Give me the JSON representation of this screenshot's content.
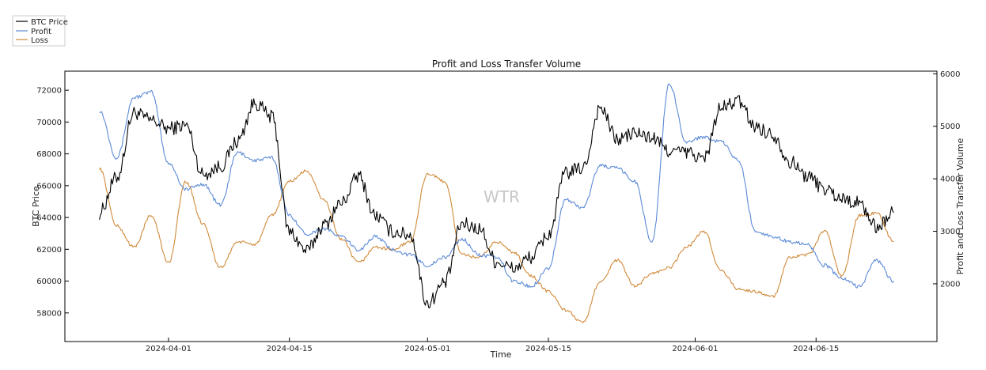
{
  "chart_data": {
    "type": "line",
    "title": "Profit and Loss Transfer Volume",
    "xlabel": "Time",
    "ylabel": "BTC Price",
    "y2label": "Profit and Loss Transfer Volume",
    "watermark": "WTR",
    "legend_position": "top-left (outside plot)",
    "xlim": [
      "2024-03-20",
      "2024-06-29"
    ],
    "ylim": [
      56200,
      73200
    ],
    "y2lim": [
      900,
      6050
    ],
    "x_ticks": [
      "2024-04-01",
      "2024-04-15",
      "2024-05-01",
      "2024-05-15",
      "2024-06-01",
      "2024-06-15"
    ],
    "y_ticks": [
      "58000",
      "60000",
      "62000",
      "64000",
      "66000",
      "68000",
      "70000",
      "72000"
    ],
    "y2_ticks": [
      "2000",
      "3000",
      "4000",
      "5000",
      "6000"
    ],
    "series": [
      {
        "name": "BTC Price",
        "axis": "left",
        "color": "#000000",
        "x": [
          "2024-03-24",
          "2024-03-26",
          "2024-03-28",
          "2024-03-30",
          "2024-04-01",
          "2024-04-03",
          "2024-04-05",
          "2024-04-07",
          "2024-04-09",
          "2024-04-11",
          "2024-04-13",
          "2024-04-15",
          "2024-04-17",
          "2024-04-19",
          "2024-04-21",
          "2024-04-23",
          "2024-04-25",
          "2024-04-27",
          "2024-04-29",
          "2024-05-01",
          "2024-05-03",
          "2024-05-05",
          "2024-05-07",
          "2024-05-09",
          "2024-05-11",
          "2024-05-13",
          "2024-05-15",
          "2024-05-17",
          "2024-05-19",
          "2024-05-21",
          "2024-05-23",
          "2024-05-25",
          "2024-05-27",
          "2024-05-29",
          "2024-05-31",
          "2024-06-02",
          "2024-06-04",
          "2024-06-06",
          "2024-06-08",
          "2024-06-10",
          "2024-06-12",
          "2024-06-14",
          "2024-06-16",
          "2024-06-18",
          "2024-06-20",
          "2024-06-22",
          "2024-06-24"
        ],
        "values": [
          64300,
          66500,
          70600,
          70100,
          69600,
          69800,
          66700,
          67200,
          68800,
          71200,
          70300,
          63100,
          61900,
          63500,
          64900,
          66600,
          64100,
          63100,
          62900,
          58600,
          59900,
          63600,
          63300,
          61200,
          60800,
          61500,
          62900,
          66800,
          67100,
          70900,
          68900,
          69300,
          69000,
          68200,
          68100,
          67700,
          70900,
          71300,
          69700,
          69200,
          67500,
          66600,
          65800,
          65200,
          64900,
          63400,
          64300
        ]
      },
      {
        "name": "Profit",
        "axis": "right",
        "color": "#5b8ad6",
        "x": [
          "2024-03-24",
          "2024-03-26",
          "2024-03-28",
          "2024-03-30",
          "2024-04-01",
          "2024-04-03",
          "2024-04-05",
          "2024-04-07",
          "2024-04-09",
          "2024-04-11",
          "2024-04-13",
          "2024-04-15",
          "2024-04-17",
          "2024-04-19",
          "2024-04-21",
          "2024-04-23",
          "2024-04-25",
          "2024-04-27",
          "2024-04-29",
          "2024-05-01",
          "2024-05-03",
          "2024-05-05",
          "2024-05-07",
          "2024-05-09",
          "2024-05-11",
          "2024-05-13",
          "2024-05-15",
          "2024-05-17",
          "2024-05-19",
          "2024-05-21",
          "2024-05-23",
          "2024-05-25",
          "2024-05-27",
          "2024-05-29",
          "2024-05-31",
          "2024-06-02",
          "2024-06-04",
          "2024-06-06",
          "2024-06-08",
          "2024-06-10",
          "2024-06-12",
          "2024-06-14",
          "2024-06-16",
          "2024-06-18",
          "2024-06-20",
          "2024-06-22",
          "2024-06-24"
        ],
        "values": [
          5300,
          4400,
          5550,
          5650,
          4300,
          3800,
          3900,
          3500,
          4500,
          4350,
          4400,
          3300,
          2950,
          3050,
          2900,
          2650,
          2900,
          2650,
          2550,
          2350,
          2500,
          2850,
          2550,
          2500,
          2050,
          1950,
          2300,
          3600,
          3450,
          4250,
          4200,
          3950,
          2800,
          5800,
          4700,
          4800,
          4700,
          4350,
          3000,
          2900,
          2800,
          2750,
          2350,
          2100,
          1950,
          2450,
          2050
        ]
      },
      {
        "name": "Loss",
        "axis": "right",
        "color": "#d08a3a",
        "x": [
          "2024-03-24",
          "2024-03-26",
          "2024-03-28",
          "2024-03-30",
          "2024-04-01",
          "2024-04-03",
          "2024-04-05",
          "2024-04-07",
          "2024-04-09",
          "2024-04-11",
          "2024-04-13",
          "2024-04-15",
          "2024-04-17",
          "2024-04-19",
          "2024-04-21",
          "2024-04-23",
          "2024-04-25",
          "2024-04-27",
          "2024-04-29",
          "2024-05-01",
          "2024-05-03",
          "2024-05-05",
          "2024-05-07",
          "2024-05-09",
          "2024-05-11",
          "2024-05-13",
          "2024-05-15",
          "2024-05-17",
          "2024-05-19",
          "2024-05-21",
          "2024-05-23",
          "2024-05-25",
          "2024-05-27",
          "2024-05-29",
          "2024-05-31",
          "2024-06-02",
          "2024-06-04",
          "2024-06-06",
          "2024-06-08",
          "2024-06-10",
          "2024-06-12",
          "2024-06-14",
          "2024-06-16",
          "2024-06-18",
          "2024-06-20",
          "2024-06-22",
          "2024-06-24"
        ],
        "values": [
          4200,
          3100,
          2700,
          3300,
          2400,
          3950,
          3150,
          2300,
          2800,
          2750,
          3300,
          3950,
          4150,
          3600,
          2850,
          2400,
          2700,
          2650,
          2800,
          4100,
          3950,
          2550,
          2500,
          2800,
          2600,
          2150,
          1850,
          1500,
          1250,
          2050,
          2450,
          1950,
          2200,
          2300,
          2700,
          3000,
          2250,
          1900,
          1850,
          1750,
          2500,
          2550,
          3000,
          2150,
          3300,
          3350,
          2800
        ]
      }
    ]
  }
}
